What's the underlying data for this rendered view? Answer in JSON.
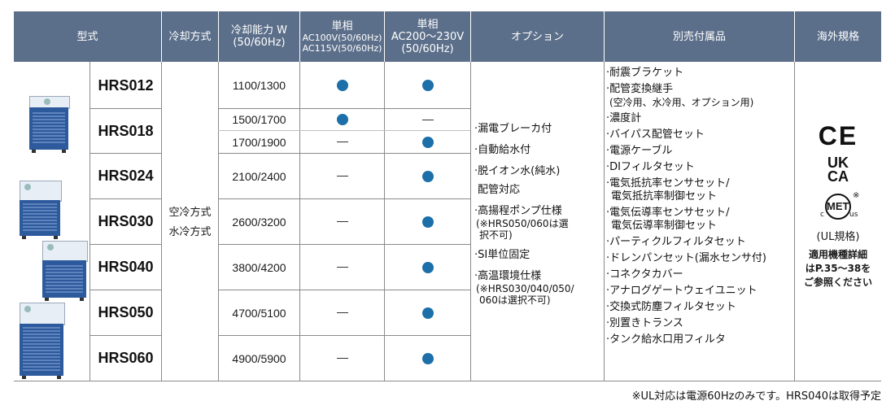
{
  "header": {
    "model": "型式",
    "cooling_method": "冷却方式",
    "capacity_line1": "冷却能力 W",
    "capacity_line2": "(50/60Hz)",
    "single_phase_a_line1": "単相",
    "single_phase_a_line2": "AC100V(50/60Hz)",
    "single_phase_a_line3": "AC115V(50/60Hz)",
    "single_phase_b_line1": "単相",
    "single_phase_b_line2": "AC200～230V",
    "single_phase_b_line3": "(50/60Hz)",
    "options": "オプション",
    "accessories": "別売付属品",
    "overseas": "海外規格"
  },
  "rows": [
    {
      "model": "HRS012",
      "capacities": [
        "1100/1300"
      ],
      "ac100": [
        "dot"
      ],
      "ac200": [
        "dot"
      ]
    },
    {
      "model": "HRS018",
      "capacities": [
        "1500/1700",
        "1700/1900"
      ],
      "ac100": [
        "dot",
        "dash"
      ],
      "ac200": [
        "dash",
        "dot"
      ]
    },
    {
      "model": "HRS024",
      "capacities": [
        "2100/2400"
      ],
      "ac100": [
        "dash"
      ],
      "ac200": [
        "dot"
      ]
    },
    {
      "model": "HRS030",
      "capacities": [
        "2600/3200"
      ],
      "ac100": [
        "dash"
      ],
      "ac200": [
        "dot"
      ]
    },
    {
      "model": "HRS040",
      "capacities": [
        "3800/4200"
      ],
      "ac100": [
        "dash"
      ],
      "ac200": [
        "dot"
      ]
    },
    {
      "model": "HRS050",
      "capacities": [
        "4700/5100"
      ],
      "ac100": [
        "dash"
      ],
      "ac200": [
        "dot"
      ]
    },
    {
      "model": "HRS060",
      "capacities": [
        "4900/5900"
      ],
      "ac100": [
        "dash"
      ],
      "ac200": [
        "dot"
      ]
    }
  ],
  "cooling_methods": [
    "空冷方式",
    "水冷方式"
  ],
  "options": {
    "o1": "·漏電ブレーカ付",
    "o2": "·自動給水付",
    "o3a": "·脱イオン水(純水)",
    "o3b": "配管対応",
    "o4a": "·高揚程ポンプ仕様",
    "o4b": "(※HRS050/060は選",
    "o4c": "択不可)",
    "o5": "·SI単位固定",
    "o6a": "·高温環境仕様",
    "o6b": "(※HRS030/040/050/",
    "o6c": "060は選択不可)"
  },
  "accessories": {
    "a1": "·耐震ブラケット",
    "a2a": "·配管変換継手",
    "a2b": "(空冷用、水冷用、オプション用)",
    "a3": "·濃度計",
    "a4": "·バイパス配管セット",
    "a5": "·電源ケーブル",
    "a6": "·DIフィルタセット",
    "a7a": "·電気抵抗率センサセット/",
    "a7b": "電気抵抗率制御セット",
    "a8a": "·電気伝導率センサセット/",
    "a8b": "電気伝導率制御セット",
    "a9": "·パーティクルフィルタセット",
    "a10": "·ドレンパンセット(漏水センサ付)",
    "a11": "·コネクタカバー",
    "a12": "·アナログゲートウェイユニット",
    "a13": "·交換式防塵フィルタセット",
    "a14": "·別置きトランス",
    "a15": "·タンク給水口用フィルタ"
  },
  "overseas": {
    "ce_mark": "CE",
    "ukca_line1": "UK",
    "ukca_line2": "CA",
    "met_mark": "MET",
    "met_c": "c",
    "met_us": "us",
    "met_note": "※",
    "ul_label": "(UL規格)",
    "note1": "適用機種詳細",
    "note2": "はP.35～38を",
    "note3": "ご参照ください"
  },
  "footnote": "※UL対応は電源60Hzのみです。HRS040は取得予定",
  "colors": {
    "header_bg": "#5c6f8a",
    "dot": "#1c6fa8",
    "unit_body": "#2d5a9c"
  }
}
